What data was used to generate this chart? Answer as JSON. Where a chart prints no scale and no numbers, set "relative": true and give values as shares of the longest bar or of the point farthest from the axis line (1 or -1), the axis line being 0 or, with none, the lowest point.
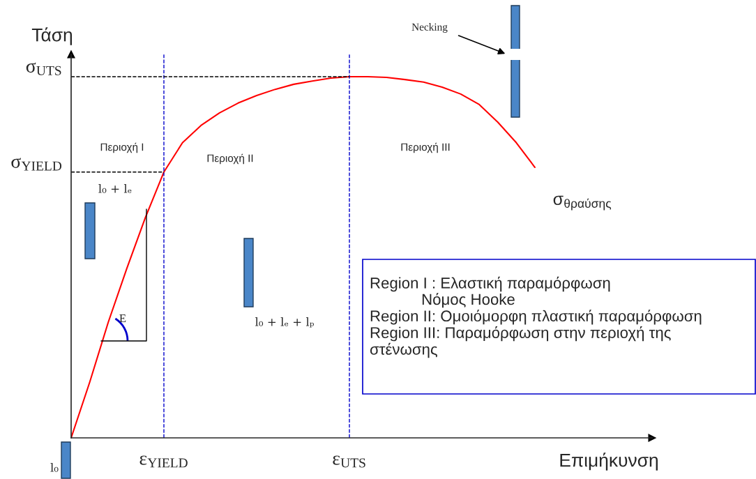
{
  "chart_data": {
    "type": "line",
    "relative": true,
    "xlabel": "Επιμήκυνση",
    "ylabel": "Τάση",
    "categories": [
      null,
      null,
      null,
      null,
      null,
      "ε$_{YIELD}$",
      null,
      null,
      null,
      null,
      null,
      null,
      null,
      null,
      null,
      "ε$_{UTS}$",
      null,
      null,
      null,
      null,
      null,
      null,
      null,
      null,
      null,
      null
    ],
    "series": [
      {
        "color": "#ff0000",
        "values": [
          0,
          0.154,
          0.32,
          0.469,
          0.61,
          0.736,
          0.817,
          0.865,
          0.9,
          0.927,
          0.948,
          0.965,
          0.979,
          0.988,
          0.996,
          1,
          1,
          0.998,
          0.992,
          0.985,
          0.971,
          0.952,
          0.923,
          0.874,
          0.817,
          0.749
        ]
      }
    ],
    "ref_lines": [
      {
        "axis": "x",
        "value": "ε$_{YIELD}$",
        "color": "#0000cc",
        "line_style": "dashed"
      },
      {
        "axis": "x",
        "value": "ε$_{UTS}$",
        "color": "#0000cc",
        "line_style": "dashed"
      },
      {
        "axis": "y",
        "value": 0.736,
        "label": "σ$_{YIELD}$",
        "color": "#000000",
        "line_style": "dashed"
      },
      {
        "axis": "y",
        "value": 1,
        "label": "σ$_{UTS}$",
        "color": "#000000",
        "line_style": "dashed"
      }
    ],
    "annotations": [
      "Περιοχή I",
      "Περιοχή II",
      "Περιοχή III",
      "σ$_{θραύσης}$",
      "Necking",
      "E",
      "l₀ + lₑ",
      "l₀ + lₑ + lₚ",
      "l₀",
      "Region I : Ελαστική παραμόρφωση\n            Νόμος Hooke\nRegion II: Ομοιόμορφη πλαστική παραμόρφωση\nRegion III: Παραμόρφωση στην περιοχή της\nστένωσης"
    ]
  }
}
